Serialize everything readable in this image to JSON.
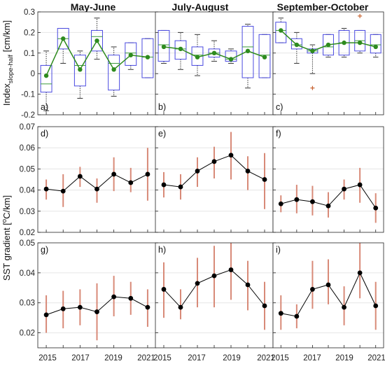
{
  "figure": {
    "column_titles": [
      "May-June",
      "July-August",
      "September-October"
    ],
    "ylabel_top": {
      "main": "Index",
      "subscript": "slope-half",
      "unit": " [cm/km]"
    },
    "ylabel_bottom": {
      "pre": "SST gradient [",
      "sup": "o",
      "post": "C/km]"
    },
    "x_tick_labels": [
      "2015",
      "2017",
      "2019",
      "2021"
    ],
    "colors": {
      "box": "#4a4ae0",
      "median": "#3a9a3a",
      "mean_line": "#2e8b1e",
      "error_bar": "#d88a78",
      "outlier": "#c86432",
      "grid": "#e6e6e6",
      "mean_line_sst": "#000000"
    }
  },
  "chart_data": [
    {
      "panel": "a)",
      "type": "box",
      "column": "May-June",
      "xlim": [
        2014.5,
        2021.5
      ],
      "ylim": [
        -0.2,
        0.3
      ],
      "yticks": [
        -0.2,
        -0.1,
        0,
        0.1,
        0.2,
        0.3
      ],
      "yticklabels": [
        "-0.2",
        "-0.1",
        "0",
        "0.1",
        "0.2",
        "0.3"
      ],
      "boxes": [
        {
          "x": 2015,
          "q1": -0.09,
          "median": -0.05,
          "q3": 0.04,
          "wlo": -0.18,
          "whi": 0.11
        },
        {
          "x": 2016,
          "q1": 0.12,
          "median": 0.17,
          "q3": 0.22,
          "wlo": 0.05,
          "whi": 0.22
        },
        {
          "x": 2017,
          "q1": -0.06,
          "median": 0.04,
          "q3": 0.09,
          "wlo": -0.12,
          "whi": 0.11
        },
        {
          "x": 2018,
          "q1": 0.11,
          "median": 0.18,
          "q3": 0.21,
          "wlo": 0.07,
          "whi": 0.27
        },
        {
          "x": 2019,
          "q1": -0.08,
          "median": 0.05,
          "q3": 0.09,
          "wlo": -0.11,
          "whi": 0.13
        },
        {
          "x": 2020,
          "q1": 0.04,
          "median": 0.1,
          "q3": 0.15,
          "wlo": 0.02,
          "whi": 0.15
        },
        {
          "x": 2021,
          "q1": -0.02,
          "median": 0.08,
          "q3": 0.17,
          "wlo": -0.02,
          "whi": 0.17
        }
      ],
      "mean_line": {
        "x": [
          2015,
          2016,
          2017,
          2018,
          2019,
          2020,
          2021
        ],
        "y": [
          -0.01,
          0.17,
          0.02,
          0.16,
          0.02,
          0.09,
          0.08
        ]
      },
      "outliers": []
    },
    {
      "panel": "b)",
      "type": "box",
      "column": "July-August",
      "xlim": [
        2014.5,
        2021.5
      ],
      "ylim": [
        -0.2,
        0.3
      ],
      "yticks": [
        -0.2,
        -0.1,
        0,
        0.1,
        0.2,
        0.3
      ],
      "yticklabels": [],
      "boxes": [
        {
          "x": 2015,
          "q1": 0.06,
          "median": 0.14,
          "q3": 0.21,
          "wlo": 0.05,
          "whi": 0.21
        },
        {
          "x": 2016,
          "q1": 0.07,
          "median": 0.12,
          "q3": 0.16,
          "wlo": 0.02,
          "whi": 0.2
        },
        {
          "x": 2017,
          "q1": 0.04,
          "median": 0.09,
          "q3": 0.13,
          "wlo": -0.01,
          "whi": 0.19
        },
        {
          "x": 2018,
          "q1": 0.08,
          "median": 0.1,
          "q3": 0.12,
          "wlo": 0.06,
          "whi": 0.16
        },
        {
          "x": 2019,
          "q1": 0.06,
          "median": 0.07,
          "q3": 0.11,
          "wlo": 0.05,
          "whi": 0.12
        },
        {
          "x": 2020,
          "q1": -0.02,
          "median": 0.13,
          "q3": 0.23,
          "wlo": -0.07,
          "whi": 0.24
        },
        {
          "x": 2021,
          "q1": -0.02,
          "median": 0.09,
          "q3": 0.19,
          "wlo": -0.02,
          "whi": 0.19
        }
      ],
      "mean_line": {
        "x": [
          2015,
          2016,
          2017,
          2018,
          2019,
          2020,
          2021
        ],
        "y": [
          0.13,
          0.12,
          0.08,
          0.1,
          0.07,
          0.11,
          0.08
        ]
      },
      "outliers": []
    },
    {
      "panel": "c)",
      "type": "box",
      "column": "September-October",
      "xlim": [
        2014.5,
        2021.5
      ],
      "ylim": [
        -0.2,
        0.3
      ],
      "yticks": [
        -0.2,
        -0.1,
        0,
        0.1,
        0.2,
        0.3
      ],
      "yticklabels": [],
      "boxes": [
        {
          "x": 2015,
          "q1": 0.15,
          "median": 0.21,
          "q3": 0.25,
          "wlo": 0.15,
          "whi": 0.27
        },
        {
          "x": 2016,
          "q1": 0.12,
          "median": 0.14,
          "q3": 0.17,
          "wlo": 0.05,
          "whi": 0.2
        },
        {
          "x": 2017,
          "q1": 0.1,
          "median": 0.11,
          "q3": 0.12,
          "wlo": 0.0,
          "whi": 0.14
        },
        {
          "x": 2018,
          "q1": 0.09,
          "median": 0.13,
          "q3": 0.19,
          "wlo": 0.08,
          "whi": 0.19
        },
        {
          "x": 2019,
          "q1": 0.09,
          "median": 0.15,
          "q3": 0.21,
          "wlo": 0.08,
          "whi": 0.22
        },
        {
          "x": 2020,
          "q1": 0.11,
          "median": 0.16,
          "q3": 0.21,
          "wlo": 0.1,
          "whi": 0.21
        },
        {
          "x": 2021,
          "q1": 0.1,
          "median": 0.14,
          "q3": 0.19,
          "wlo": 0.08,
          "whi": 0.19
        }
      ],
      "mean_line": {
        "x": [
          2015,
          2016,
          2017,
          2018,
          2019,
          2020,
          2021
        ],
        "y": [
          0.21,
          0.14,
          0.11,
          0.14,
          0.15,
          0.15,
          0.13
        ]
      },
      "outliers": [
        {
          "x": 2017,
          "y": -0.07
        },
        {
          "x": 2020,
          "y": 0.28
        }
      ]
    },
    {
      "panel": "d)",
      "type": "line-errorbar",
      "column": "May-June",
      "xlim": [
        2014.5,
        2021.5
      ],
      "ylim": [
        0.02,
        0.07
      ],
      "yticks": [
        0.02,
        0.03,
        0.04,
        0.05,
        0.06,
        0.07
      ],
      "yticklabels": [
        "0.02",
        "0.03",
        "0.04",
        "0.05",
        "0.06",
        "0.07"
      ],
      "x": [
        2015,
        2016,
        2017,
        2018,
        2019,
        2020,
        2021
      ],
      "y": [
        0.0405,
        0.0395,
        0.0465,
        0.0405,
        0.0475,
        0.0435,
        0.0475
      ],
      "err_lo": [
        0.0355,
        0.032,
        0.0415,
        0.034,
        0.0395,
        0.039,
        0.035
      ],
      "err_hi": [
        0.045,
        0.0475,
        0.051,
        0.0455,
        0.0555,
        0.0505,
        0.06
      ]
    },
    {
      "panel": "e)",
      "type": "line-errorbar",
      "column": "July-August",
      "xlim": [
        2014.5,
        2021.5
      ],
      "ylim": [
        0.02,
        0.07
      ],
      "yticks": [
        0.02,
        0.03,
        0.04,
        0.05,
        0.06,
        0.07
      ],
      "yticklabels": [],
      "x": [
        2015,
        2016,
        2017,
        2018,
        2019,
        2020,
        2021
      ],
      "y": [
        0.0425,
        0.0415,
        0.049,
        0.0535,
        0.0565,
        0.049,
        0.045
      ],
      "err_lo": [
        0.0365,
        0.0355,
        0.0415,
        0.0455,
        0.045,
        0.04,
        0.031
      ],
      "err_hi": [
        0.0485,
        0.0475,
        0.0555,
        0.0605,
        0.0675,
        0.056,
        0.0575
      ]
    },
    {
      "panel": "f)",
      "type": "line-errorbar",
      "column": "September-October",
      "xlim": [
        2014.5,
        2021.5
      ],
      "ylim": [
        0.02,
        0.07
      ],
      "yticks": [
        0.02,
        0.03,
        0.04,
        0.05,
        0.06,
        0.07
      ],
      "yticklabels": [],
      "x": [
        2015,
        2016,
        2017,
        2018,
        2019,
        2020,
        2021
      ],
      "y": [
        0.0335,
        0.0355,
        0.0345,
        0.0325,
        0.0405,
        0.0425,
        0.0315
      ],
      "err_lo": [
        0.0295,
        0.029,
        0.028,
        0.027,
        0.0355,
        0.034,
        0.0245
      ],
      "err_hi": [
        0.0375,
        0.0425,
        0.042,
        0.039,
        0.045,
        0.0505,
        0.0385
      ]
    },
    {
      "panel": "g)",
      "type": "line-errorbar",
      "column": "May-June",
      "xlim": [
        2014.5,
        2021.5
      ],
      "ylim": [
        0.015,
        0.05
      ],
      "yticks": [
        0.02,
        0.03,
        0.04,
        0.05
      ],
      "yticklabels": [
        "0.02",
        "0.03",
        "0.04",
        "0.05"
      ],
      "x": [
        2015,
        2016,
        2017,
        2018,
        2019,
        2020,
        2021
      ],
      "y": [
        0.026,
        0.028,
        0.0285,
        0.027,
        0.032,
        0.0315,
        0.0285
      ],
      "err_lo": [
        0.02,
        0.0215,
        0.0225,
        0.0175,
        0.0255,
        0.026,
        0.022
      ],
      "err_hi": [
        0.0325,
        0.034,
        0.0345,
        0.0365,
        0.039,
        0.037,
        0.0345
      ]
    },
    {
      "panel": "h)",
      "type": "line-errorbar",
      "column": "July-August",
      "xlim": [
        2014.5,
        2021.5
      ],
      "ylim": [
        0.015,
        0.05
      ],
      "yticks": [
        0.02,
        0.03,
        0.04,
        0.05
      ],
      "yticklabels": [],
      "x": [
        2015,
        2016,
        2017,
        2018,
        2019,
        2020,
        2021
      ],
      "y": [
        0.0345,
        0.0285,
        0.0365,
        0.039,
        0.041,
        0.036,
        0.029
      ],
      "err_lo": [
        0.025,
        0.0245,
        0.0285,
        0.0285,
        0.031,
        0.0275,
        0.021
      ],
      "err_hi": [
        0.0435,
        0.0345,
        0.045,
        0.049,
        0.0505,
        0.044,
        0.037
      ]
    },
    {
      "panel": "i)",
      "type": "line-errorbar",
      "column": "September-October",
      "xlim": [
        2014.5,
        2021.5
      ],
      "ylim": [
        0.015,
        0.05
      ],
      "yticks": [
        0.02,
        0.03,
        0.04,
        0.05
      ],
      "yticklabels": [],
      "x": [
        2015,
        2016,
        2017,
        2018,
        2019,
        2020,
        2021
      ],
      "y": [
        0.0265,
        0.0255,
        0.0345,
        0.036,
        0.0285,
        0.04,
        0.029
      ],
      "err_lo": [
        0.021,
        0.0215,
        0.028,
        0.0295,
        0.0225,
        0.0315,
        0.021
      ],
      "err_hi": [
        0.0325,
        0.0295,
        0.044,
        0.0445,
        0.0355,
        0.0505,
        0.037
      ]
    }
  ]
}
